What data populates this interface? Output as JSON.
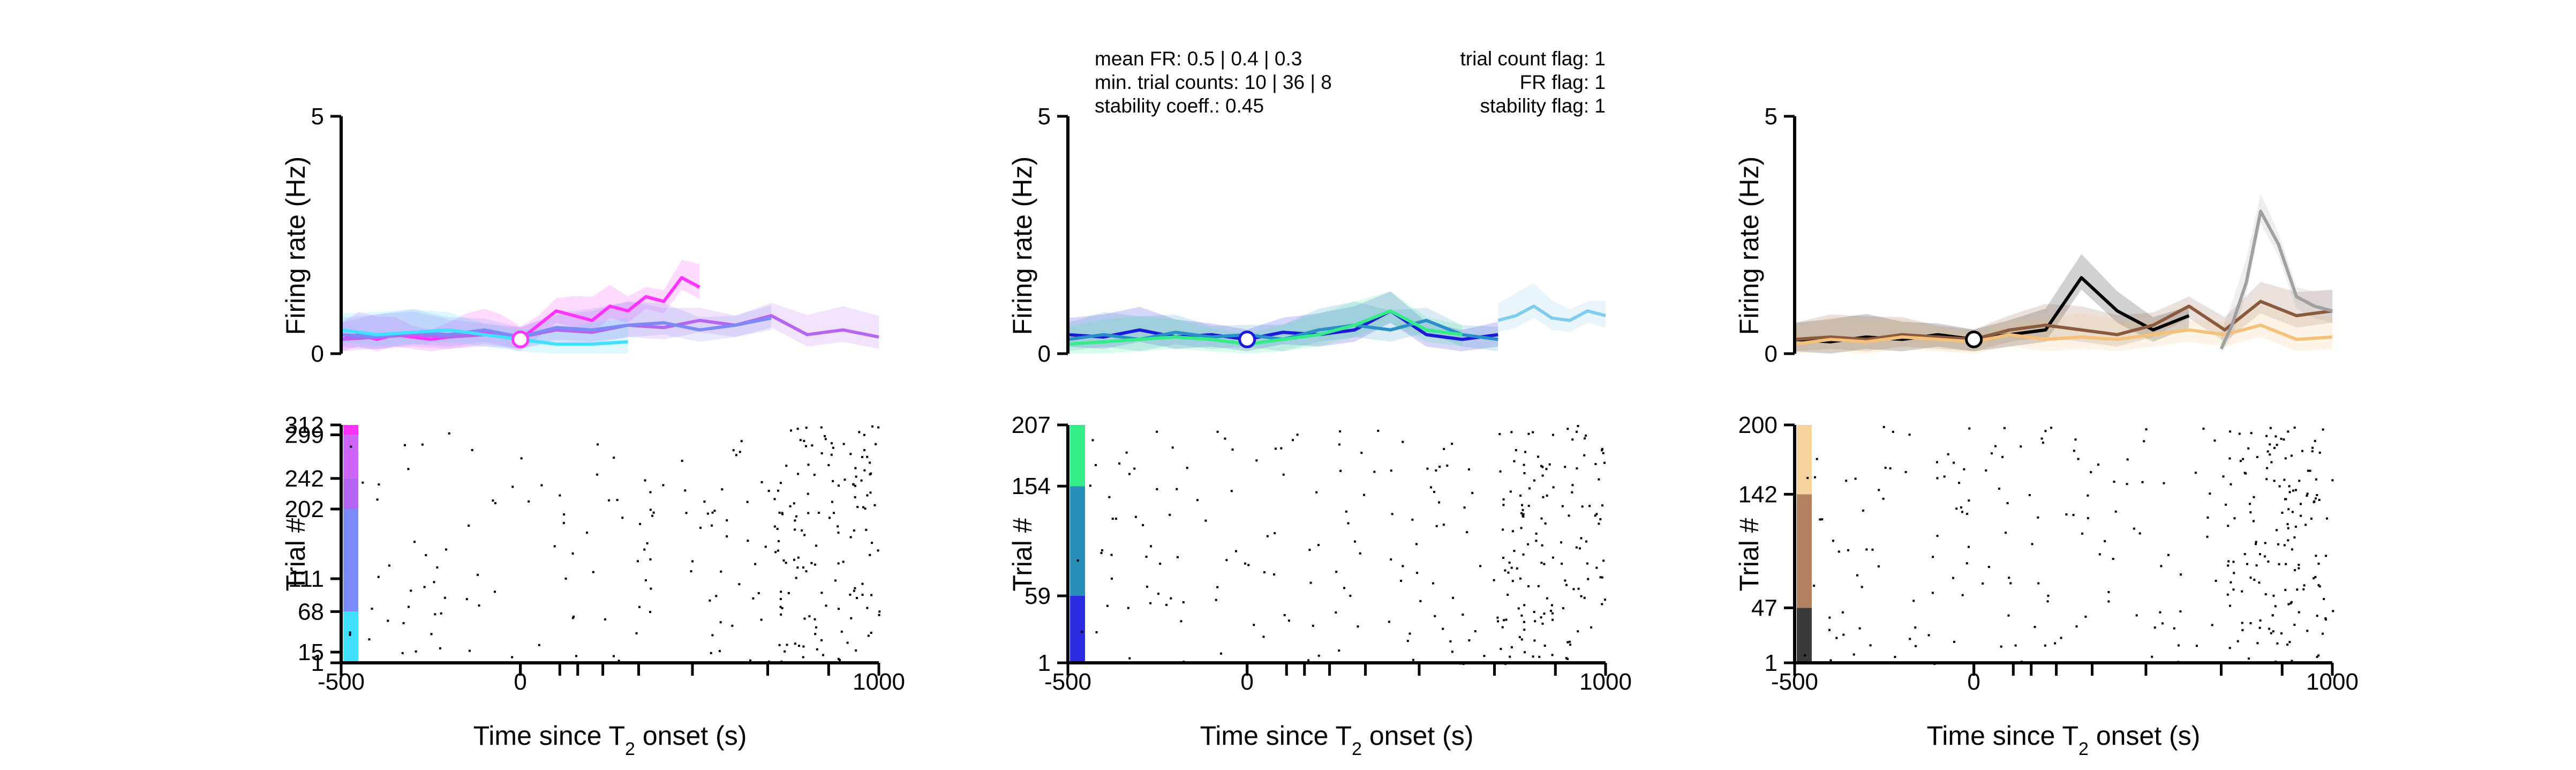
{
  "chart_data": [
    {
      "type": "line",
      "panel": "left-psth",
      "ylabel": "Firing rate (Hz)",
      "ylim": [
        0,
        5
      ],
      "yticks": [
        "0",
        "5"
      ],
      "xlim": [
        -500,
        1000
      ],
      "series": [
        {
          "color": "#ff33ff",
          "x": [
            -500,
            -450,
            -400,
            -350,
            -300,
            -250,
            -200,
            -150,
            -100,
            -50,
            0,
            50,
            100,
            150,
            200,
            250,
            300,
            350,
            400,
            450,
            500
          ],
          "values": [
            0.3,
            0.4,
            0.3,
            0.4,
            0.35,
            0.3,
            0.35,
            0.4,
            0.45,
            0.4,
            0.3,
            0.6,
            0.9,
            0.8,
            0.7,
            1.0,
            0.9,
            1.2,
            1.1,
            1.6,
            1.4
          ]
        },
        {
          "color": "#b566f0",
          "x": [
            -500,
            -400,
            -300,
            -200,
            -100,
            0,
            100,
            200,
            300,
            400,
            500,
            600,
            700,
            800,
            900,
            1000
          ],
          "values": [
            0.3,
            0.35,
            0.4,
            0.35,
            0.4,
            0.35,
            0.5,
            0.45,
            0.6,
            0.55,
            0.7,
            0.6,
            0.8,
            0.4,
            0.5,
            0.35
          ]
        },
        {
          "color": "#7c8af5",
          "x": [
            -500,
            -400,
            -300,
            -200,
            -100,
            0,
            100,
            200,
            300,
            400,
            500,
            600,
            700
          ],
          "values": [
            0.4,
            0.35,
            0.45,
            0.4,
            0.5,
            0.35,
            0.55,
            0.5,
            0.6,
            0.65,
            0.5,
            0.6,
            0.75
          ]
        },
        {
          "color": "#40e0ff",
          "x": [
            -500,
            -400,
            -300,
            -200,
            -100,
            0,
            100,
            200,
            300
          ],
          "values": [
            0.5,
            0.4,
            0.45,
            0.5,
            0.4,
            0.3,
            0.2,
            0.2,
            0.25
          ]
        }
      ],
      "marker_x": 0,
      "xlabel": "Time since T",
      "xlabel_sub": "2",
      "xlabel_tail": " onset (s)",
      "xticks": [
        "-500",
        "0",
        "1000"
      ],
      "minor_xticks": [
        0,
        110,
        160,
        230,
        330,
        480,
        690,
        860
      ],
      "raster": {
        "ylabel": "Trial #",
        "yticks": [
          "1",
          "15",
          "68",
          "111",
          "202",
          "242",
          "299",
          "312"
        ],
        "trial_max": 312,
        "segments": [
          {
            "from": 1,
            "to": 15,
            "color": "#40e0ff"
          },
          {
            "from": 15,
            "to": 68,
            "color": "#40e0ff"
          },
          {
            "from": 68,
            "to": 111,
            "color": "#7c8af5"
          },
          {
            "from": 111,
            "to": 202,
            "color": "#7c8af5"
          },
          {
            "from": 202,
            "to": 242,
            "color": "#b566f0"
          },
          {
            "from": 242,
            "to": 299,
            "color": "#cc66ff"
          },
          {
            "from": 299,
            "to": 312,
            "color": "#ff33ff"
          }
        ]
      }
    },
    {
      "type": "line",
      "panel": "middle-psth",
      "ylabel": "Firing rate (Hz)",
      "ylim": [
        0,
        5
      ],
      "yticks": [
        "0",
        "5"
      ],
      "xlim": [
        -500,
        1000
      ],
      "series": [
        {
          "color": "#1a1ad8",
          "x": [
            -500,
            -400,
            -300,
            -200,
            -100,
            0,
            100,
            200,
            300,
            400,
            500,
            600,
            700
          ],
          "values": [
            0.4,
            0.35,
            0.5,
            0.35,
            0.4,
            0.3,
            0.45,
            0.4,
            0.5,
            0.9,
            0.4,
            0.3,
            0.4
          ]
        },
        {
          "color": "#2a8fc8",
          "x": [
            -500,
            -400,
            -300,
            -200,
            -100,
            0,
            100,
            200,
            300,
            400,
            500,
            600,
            700
          ],
          "values": [
            0.3,
            0.4,
            0.3,
            0.45,
            0.35,
            0.4,
            0.3,
            0.5,
            0.6,
            0.5,
            0.7,
            0.4,
            0.3
          ]
        },
        {
          "color": "#33ee88",
          "x": [
            -500,
            -400,
            -300,
            -200,
            -100,
            0,
            100,
            200,
            300,
            400,
            500,
            600
          ],
          "values": [
            0.2,
            0.25,
            0.3,
            0.35,
            0.3,
            0.2,
            0.3,
            0.4,
            0.6,
            0.9,
            0.5,
            0.4
          ]
        },
        {
          "color": "#80ccee",
          "x": [
            700,
            750,
            800,
            850,
            900,
            950,
            1000
          ],
          "values": [
            0.7,
            0.8,
            1.0,
            0.75,
            0.7,
            0.9,
            0.8
          ]
        }
      ],
      "marker_x": 0,
      "annotations": {
        "mean_fr": "mean FR: 0.5 | 0.4 | 0.3",
        "min_trial_counts": "min. trial counts: 10 | 36 | 8",
        "stability_coeff": "stability coeff.: 0.45",
        "trial_count_flag": "trial count flag: 1",
        "fr_flag": "FR flag: 1",
        "stability_flag": "stability flag: 1"
      },
      "xlabel": "Time since T",
      "xlabel_sub": "2",
      "xlabel_tail": " onset (s)",
      "xticks": [
        "-500",
        "0",
        "1000"
      ],
      "minor_xticks": [
        0,
        110,
        160,
        230,
        330,
        480,
        690,
        860
      ],
      "raster": {
        "ylabel": "Trial #",
        "yticks": [
          "1",
          "59",
          "154",
          "207"
        ],
        "trial_max": 207,
        "segments": [
          {
            "from": 1,
            "to": 59,
            "color": "#2a2ae0"
          },
          {
            "from": 59,
            "to": 154,
            "color": "#2a8fb8"
          },
          {
            "from": 154,
            "to": 207,
            "color": "#33ee88"
          }
        ]
      }
    },
    {
      "type": "line",
      "panel": "right-psth",
      "ylabel": "Firing rate (Hz)",
      "ylim": [
        0,
        5
      ],
      "yticks": [
        "0",
        "5"
      ],
      "xlim": [
        -500,
        1000
      ],
      "series": [
        {
          "color": "#000000",
          "x": [
            -500,
            -400,
            -300,
            -200,
            -100,
            0,
            100,
            200,
            300,
            400,
            500,
            600
          ],
          "values": [
            0.3,
            0.25,
            0.35,
            0.3,
            0.4,
            0.3,
            0.4,
            0.5,
            1.6,
            0.9,
            0.5,
            0.8
          ]
        },
        {
          "color": "#8b5a3c",
          "x": [
            -500,
            -400,
            -300,
            -200,
            -100,
            0,
            100,
            200,
            300,
            400,
            500,
            600,
            700,
            800,
            900,
            1000
          ],
          "values": [
            0.3,
            0.35,
            0.3,
            0.4,
            0.35,
            0.3,
            0.5,
            0.6,
            0.5,
            0.4,
            0.6,
            1.0,
            0.5,
            1.1,
            0.8,
            0.9
          ]
        },
        {
          "color": "#f4c07a",
          "x": [
            -500,
            -400,
            -300,
            -200,
            -100,
            0,
            100,
            200,
            300,
            400,
            500,
            600,
            700,
            800,
            900,
            1000
          ],
          "values": [
            0.2,
            0.3,
            0.25,
            0.35,
            0.3,
            0.25,
            0.4,
            0.3,
            0.35,
            0.3,
            0.4,
            0.5,
            0.4,
            0.6,
            0.3,
            0.35
          ]
        },
        {
          "color": "#a0a0a0",
          "x": [
            690,
            720,
            760,
            800,
            850,
            900,
            950,
            1000
          ],
          "values": [
            0.1,
            0.6,
            1.5,
            3.0,
            2.3,
            1.2,
            1.0,
            0.9
          ]
        }
      ],
      "marker_x": 0,
      "xlabel": "Time since T",
      "xlabel_sub": "2",
      "xlabel_tail": " onset (s)",
      "xticks": [
        "-500",
        "0",
        "1000"
      ],
      "minor_xticks": [
        0,
        110,
        160,
        230,
        330,
        480,
        690,
        860
      ],
      "raster": {
        "ylabel": "Trial #",
        "yticks": [
          "1",
          "47",
          "142",
          "200"
        ],
        "trial_max": 200,
        "segments": [
          {
            "from": 1,
            "to": 47,
            "color": "#3a3a3a"
          },
          {
            "from": 47,
            "to": 142,
            "color": "#b38060"
          },
          {
            "from": 142,
            "to": 200,
            "color": "#f7d49e"
          }
        ]
      }
    }
  ]
}
